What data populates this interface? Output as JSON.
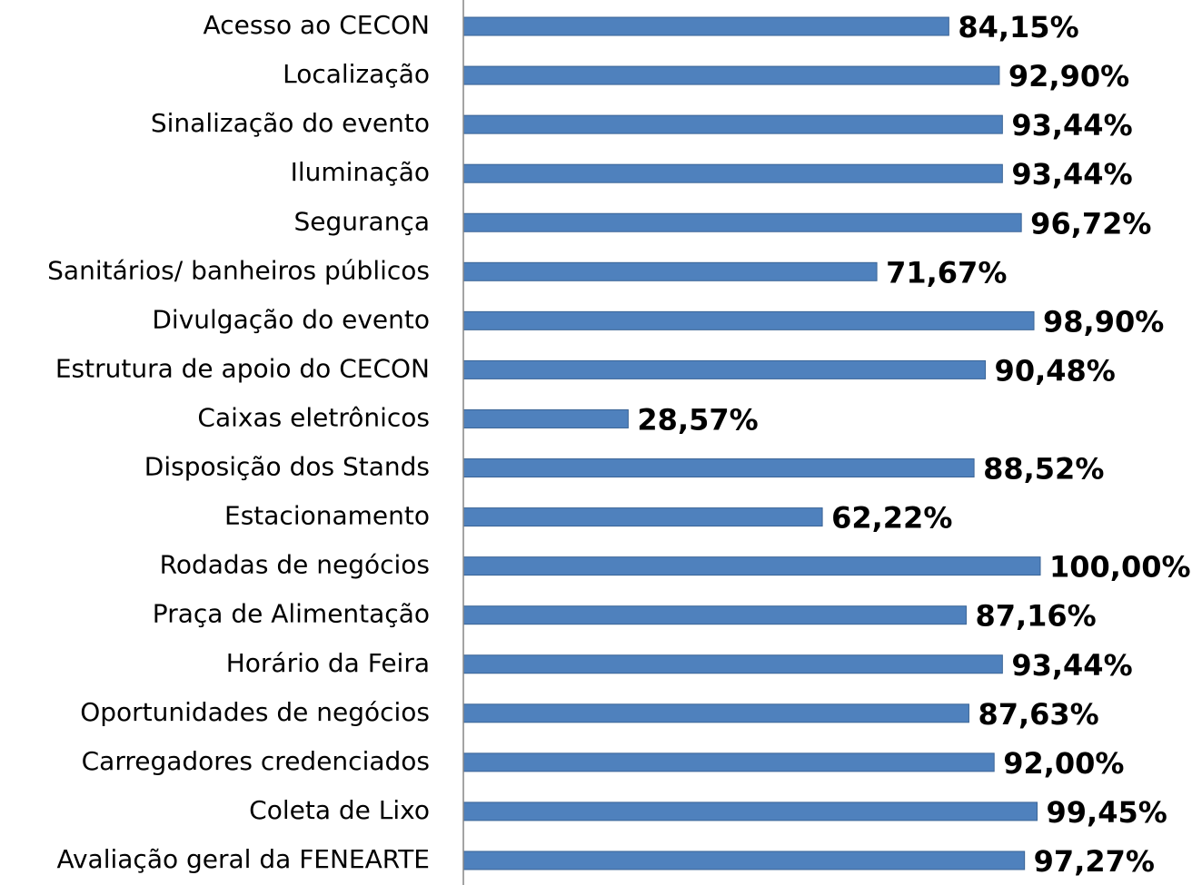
{
  "chart_data": {
    "type": "bar",
    "orientation": "horizontal",
    "categories": [
      "Acesso ao CECON",
      "Localização",
      "Sinalização do evento",
      "Iluminação",
      "Segurança",
      "Sanitários/ banheiros públicos",
      "Divulgação do evento",
      "Estrutura de apoio do CECON",
      "Caixas eletrônicos",
      "Disposição dos Stands",
      "Estacionamento",
      "Rodadas de negócios",
      "Praça de Alimentação",
      "Horário da Feira",
      "Oportunidades de negócios",
      "Carregadores credenciados",
      "Coleta de Lixo",
      "Avaliação geral da FENEARTE"
    ],
    "values": [
      84.15,
      92.9,
      93.44,
      93.44,
      96.72,
      71.67,
      98.9,
      90.48,
      28.57,
      88.52,
      62.22,
      100.0,
      87.16,
      93.44,
      87.63,
      92.0,
      99.45,
      97.27
    ],
    "value_labels": [
      "84,15%",
      "92,90%",
      "93,44%",
      "93,44%",
      "96,72%",
      "71,67%",
      "98,90%",
      "90,48%",
      "28,57%",
      "88,52%",
      "62,22%",
      "100,00%",
      "87,16%",
      "93,44%",
      "87,63%",
      "92,00%",
      "99,45%",
      "97,27%"
    ],
    "color": "#4f81bd",
    "xlim": [
      0,
      100
    ]
  }
}
